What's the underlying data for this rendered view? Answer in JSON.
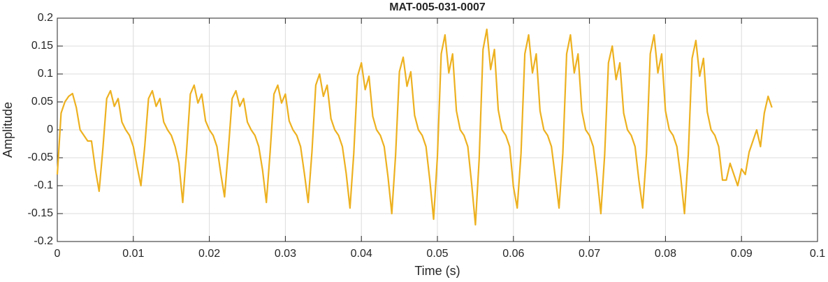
{
  "chart_data": {
    "type": "line",
    "title": "MAT-005-031-0007",
    "xlabel": "Time (s)",
    "ylabel": "Amplitude",
    "x": [
      0,
      0.0005,
      0.001,
      0.0015,
      0.002,
      0.0025,
      0.003,
      0.0035,
      0.004,
      0.0045,
      0.005,
      0.0055,
      0.006,
      0.0065,
      0.007,
      0.0075,
      0.008,
      0.0085,
      0.009,
      0.0095,
      0.01,
      0.0105,
      0.011,
      0.0115,
      0.012,
      0.0125,
      0.013,
      0.0135,
      0.014,
      0.0145,
      0.015,
      0.0155,
      0.016,
      0.0165,
      0.017,
      0.0175,
      0.018,
      0.0185,
      0.019,
      0.0195,
      0.02,
      0.0205,
      0.021,
      0.0215,
      0.022,
      0.0225,
      0.023,
      0.0235,
      0.024,
      0.0245,
      0.025,
      0.0255,
      0.026,
      0.0265,
      0.027,
      0.0275,
      0.028,
      0.0285,
      0.029,
      0.0295,
      0.03,
      0.0305,
      0.031,
      0.0315,
      0.032,
      0.0325,
      0.033,
      0.0335,
      0.034,
      0.0345,
      0.035,
      0.0355,
      0.036,
      0.0365,
      0.037,
      0.0375,
      0.038,
      0.0385,
      0.039,
      0.0395,
      0.04,
      0.0405,
      0.041,
      0.0415,
      0.042,
      0.0425,
      0.043,
      0.0435,
      0.044,
      0.0445,
      0.045,
      0.0455,
      0.046,
      0.0465,
      0.047,
      0.0475,
      0.048,
      0.0485,
      0.049,
      0.0495,
      0.05,
      0.0505,
      0.051,
      0.0515,
      0.052,
      0.0525,
      0.053,
      0.0535,
      0.054,
      0.0545,
      0.055,
      0.0555,
      0.056,
      0.0565,
      0.057,
      0.0575,
      0.058,
      0.0585,
      0.059,
      0.0595,
      0.06,
      0.0605,
      0.061,
      0.0615,
      0.062,
      0.0625,
      0.063,
      0.0635,
      0.064,
      0.0645,
      0.065,
      0.0655,
      0.066,
      0.0665,
      0.067,
      0.0675,
      0.068,
      0.0685,
      0.069,
      0.0695,
      0.07,
      0.0705,
      0.071,
      0.0715,
      0.072,
      0.0725,
      0.073,
      0.0735,
      0.074,
      0.0745,
      0.075,
      0.0755,
      0.076,
      0.0765,
      0.077,
      0.0775,
      0.078,
      0.0785,
      0.079,
      0.0795,
      0.08,
      0.0805,
      0.081,
      0.0815,
      0.082,
      0.0825,
      0.083,
      0.0835,
      0.084,
      0.0845,
      0.085,
      0.0855,
      0.086,
      0.0865,
      0.087,
      0.0875,
      0.088,
      0.0885,
      0.089,
      0.0895,
      0.09,
      0.0905,
      0.091,
      0.0915,
      0.092,
      0.0925,
      0.093,
      0.0935,
      0.094
    ],
    "series": [
      {
        "color": "#EDB120",
        "values": [
          -0.08,
          0.03,
          0.05,
          0.06,
          0.065,
          0.04,
          0,
          -0.01,
          -0.02,
          -0.02,
          -0.07,
          -0.11,
          -0.033,
          0.056,
          0.07,
          0.042,
          0.056,
          0.014,
          0,
          -0.01,
          -0.03,
          -0.066,
          -0.1,
          -0.03,
          0.056,
          0.07,
          0.042,
          0.056,
          0.014,
          0,
          -0.01,
          -0.03,
          -0.06,
          -0.13,
          -0.039,
          0.064,
          0.08,
          0.048,
          0.064,
          0.016,
          0,
          -0.01,
          -0.03,
          -0.078,
          -0.12,
          -0.036,
          0.056,
          0.07,
          0.042,
          0.056,
          0.014,
          0,
          -0.01,
          -0.03,
          -0.072,
          -0.13,
          -0.039,
          0.064,
          0.08,
          0.048,
          0.064,
          0.016,
          0,
          -0.01,
          -0.03,
          -0.078,
          -0.13,
          -0.039,
          0.08,
          0.1,
          0.06,
          0.08,
          0.02,
          0,
          -0.01,
          -0.03,
          -0.078,
          -0.14,
          -0.042,
          0.096,
          0.12,
          0.072,
          0.096,
          0.024,
          0,
          -0.01,
          -0.03,
          -0.084,
          -0.15,
          -0.045,
          0.104,
          0.13,
          0.078,
          0.104,
          0.026,
          0,
          -0.01,
          -0.03,
          -0.09,
          -0.16,
          -0.048,
          0.136,
          0.17,
          0.102,
          0.136,
          0.034,
          0,
          -0.01,
          -0.03,
          -0.096,
          -0.17,
          -0.051,
          0.144,
          0.18,
          0.108,
          0.144,
          0.036,
          0,
          -0.01,
          -0.03,
          -0.102,
          -0.14,
          -0.042,
          0.136,
          0.17,
          0.102,
          0.136,
          0.034,
          0,
          -0.01,
          -0.03,
          -0.084,
          -0.14,
          -0.042,
          0.136,
          0.17,
          0.102,
          0.136,
          0.034,
          0,
          -0.01,
          -0.03,
          -0.084,
          -0.15,
          -0.045,
          0.12,
          0.15,
          0.09,
          0.12,
          0.03,
          0,
          -0.01,
          -0.03,
          -0.09,
          -0.14,
          -0.042,
          0.136,
          0.17,
          0.102,
          0.136,
          0.034,
          0,
          -0.01,
          -0.03,
          -0.084,
          -0.15,
          -0.045,
          0.128,
          0.16,
          0.096,
          0.128,
          0.032,
          0,
          -0.01,
          -0.03,
          -0.09,
          -0.09,
          -0.06,
          -0.08,
          -0.1,
          -0.07,
          -0.08,
          -0.04,
          -0.02,
          0,
          -0.03,
          0.03,
          0.06,
          0.04
        ]
      }
    ],
    "xlim": [
      0,
      0.1
    ],
    "xticks": [
      0,
      0.01,
      0.02,
      0.03,
      0.04,
      0.05,
      0.06,
      0.07,
      0.08,
      0.09,
      0.1
    ],
    "ylim": [
      -0.2,
      0.2
    ],
    "yticks": [
      -0.2,
      -0.15,
      -0.1,
      -0.05,
      0,
      0.05,
      0.1,
      0.15,
      0.2
    ],
    "grid": true
  }
}
